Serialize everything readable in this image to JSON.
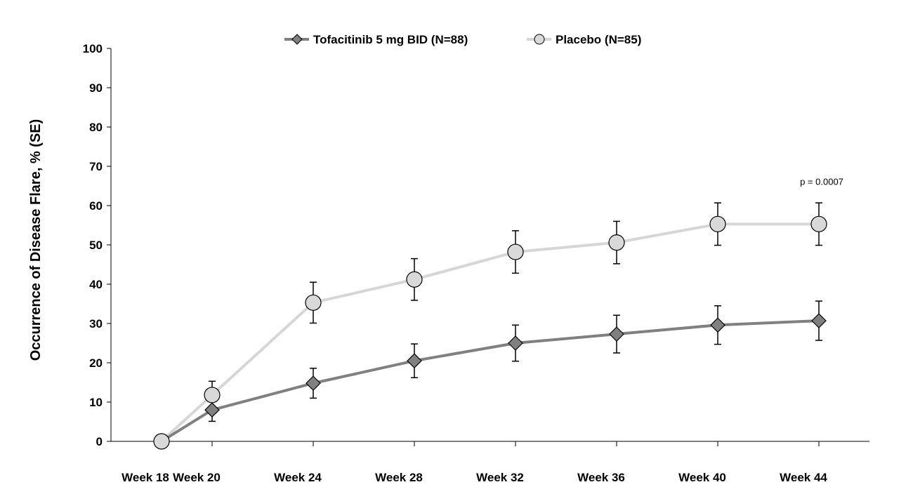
{
  "chart_data": {
    "type": "line",
    "categories": [
      "Week 18",
      "Week 20",
      "Week 24",
      "Week 28",
      "Week 32",
      "Week 36",
      "Week 40",
      "Week 44"
    ],
    "ylabel": "Occurrence of Disease Flare, % (SE)",
    "xlabel": "",
    "ylim": [
      0,
      100
    ],
    "yticks": [
      0,
      10,
      20,
      30,
      40,
      50,
      60,
      70,
      80,
      90,
      100
    ],
    "grid": false,
    "legend_position": "top-center",
    "series": [
      {
        "name": "Tofacitinib 5 mg BID (N=88)",
        "marker": "diamond",
        "color": "#808080",
        "marker_color": "#808080",
        "values": [
          0,
          8.0,
          14.8,
          20.5,
          25.0,
          27.3,
          29.6,
          30.7
        ],
        "se": [
          0,
          2.9,
          3.8,
          4.3,
          4.6,
          4.8,
          4.9,
          5.0
        ]
      },
      {
        "name": "Placebo (N=85)",
        "marker": "circle",
        "color": "#d6d6d6",
        "marker_color": "#d9d9d9",
        "values": [
          0,
          11.8,
          35.3,
          41.2,
          48.2,
          50.6,
          55.3,
          55.3
        ],
        "se": [
          0,
          3.5,
          5.2,
          5.3,
          5.4,
          5.4,
          5.4,
          5.4
        ]
      }
    ],
    "annotations": [
      {
        "text": "p = 0.0007",
        "category": "Week 44",
        "y": 66
      }
    ]
  }
}
